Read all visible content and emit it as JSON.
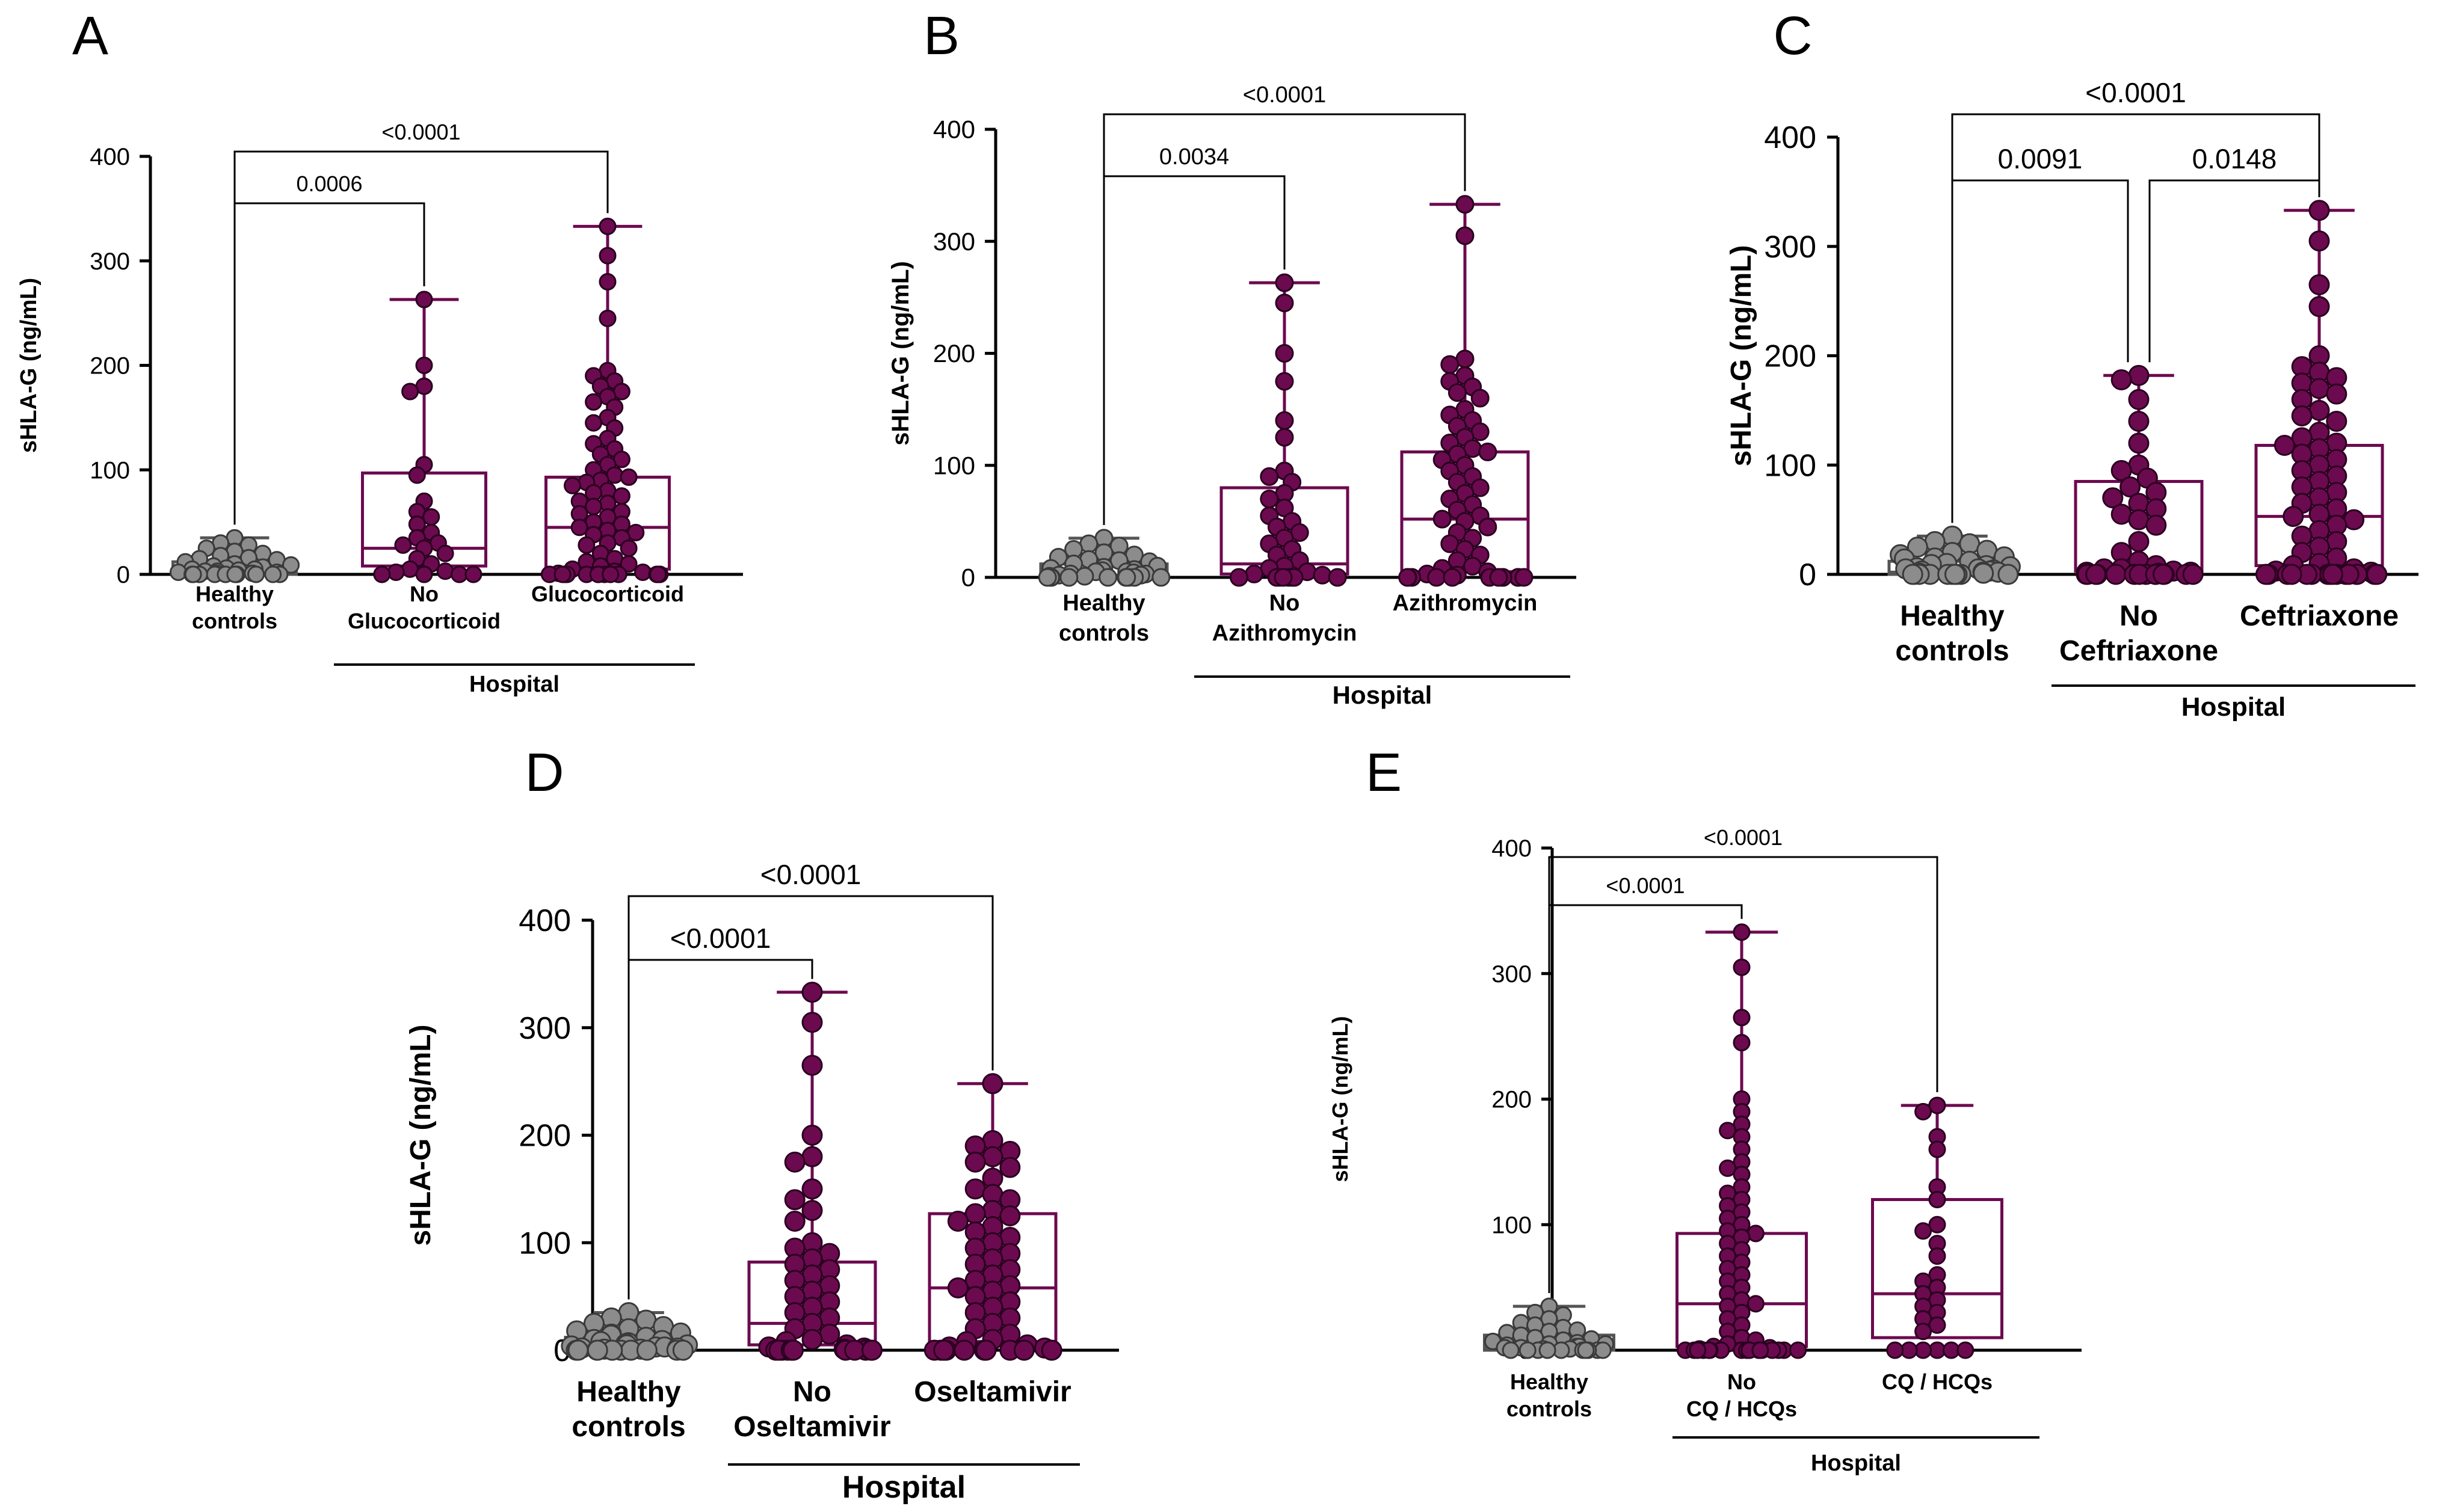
{
  "colors": {
    "control": "#8c8c8c",
    "control_edge": "#555555",
    "patient": "#6c0a4f",
    "patient_edge": "#2a0020",
    "axis": "#000000"
  },
  "chart_data": [
    {
      "panel": "A",
      "type": "box",
      "ylabel": "sHLA-G (ng/mL)",
      "ylim": [
        0,
        400
      ],
      "yticks": [
        0,
        100,
        200,
        300,
        400
      ],
      "groups": [
        {
          "label": [
            "Healthy",
            "controls"
          ],
          "color": "control",
          "min": 0,
          "q1": 0,
          "median": 2,
          "q3": 12,
          "max": 35,
          "points": [
            35,
            30,
            28,
            25,
            22,
            20,
            18,
            16,
            15,
            14,
            12,
            10,
            9,
            8,
            7,
            6,
            5,
            5,
            4,
            3,
            3,
            2,
            2,
            1,
            1,
            0,
            0,
            0,
            0,
            0,
            0,
            0,
            0,
            0,
            0
          ]
        },
        {
          "label": [
            "No",
            "Glucocorticoid"
          ],
          "color": "patient",
          "min": 0,
          "q1": 8,
          "median": 25,
          "q3": 97,
          "max": 263,
          "points": [
            263,
            200,
            180,
            175,
            105,
            95,
            70,
            60,
            55,
            48,
            40,
            35,
            30,
            28,
            25,
            20,
            15,
            10,
            5,
            3,
            2,
            0,
            0,
            0,
            0
          ]
        },
        {
          "label": [
            "Glucocorticoid"
          ],
          "color": "patient",
          "min": 0,
          "q1": 5,
          "median": 45,
          "q3": 93,
          "max": 333,
          "points": [
            333,
            305,
            280,
            245,
            195,
            190,
            185,
            180,
            175,
            170,
            165,
            160,
            150,
            145,
            140,
            130,
            125,
            120,
            115,
            110,
            105,
            100,
            95,
            93,
            90,
            88,
            85,
            80,
            78,
            75,
            70,
            68,
            65,
            60,
            58,
            55,
            50,
            48,
            45,
            42,
            40,
            38,
            35,
            30,
            28,
            25,
            20,
            15,
            12,
            10,
            8,
            5,
            3,
            2,
            1,
            0,
            0,
            0,
            0,
            0,
            0,
            0,
            0,
            0,
            0,
            0,
            0,
            0,
            0,
            0
          ]
        }
      ],
      "comparisons": [
        {
          "from": 0,
          "to": 1,
          "label": "0.0006"
        },
        {
          "from": 0,
          "to": 2,
          "label": "<0.0001"
        }
      ],
      "hospital_label": "Hospital"
    },
    {
      "panel": "B",
      "type": "box",
      "ylabel": "sHLA-G (ng/mL)",
      "ylim": [
        0,
        400
      ],
      "yticks": [
        0,
        100,
        200,
        300,
        400
      ],
      "groups": [
        {
          "label": [
            "Healthy",
            "controls"
          ],
          "color": "control",
          "min": 0,
          "q1": 0,
          "median": 2,
          "q3": 12,
          "max": 35,
          "points": [
            35,
            30,
            28,
            25,
            22,
            20,
            18,
            16,
            15,
            14,
            12,
            10,
            9,
            8,
            7,
            6,
            5,
            5,
            4,
            3,
            3,
            2,
            2,
            1,
            1,
            0,
            0,
            0,
            0,
            0,
            0,
            0,
            0,
            0,
            0
          ]
        },
        {
          "label": [
            "No",
            "Azithromycin"
          ],
          "color": "patient",
          "min": 0,
          "q1": 3,
          "median": 12,
          "q3": 80,
          "max": 263,
          "points": [
            263,
            245,
            200,
            175,
            140,
            125,
            95,
            90,
            85,
            75,
            70,
            62,
            55,
            50,
            45,
            40,
            35,
            30,
            25,
            20,
            15,
            10,
            8,
            5,
            3,
            2,
            0,
            0,
            0,
            0,
            0,
            0,
            0,
            0
          ]
        },
        {
          "label": [
            "Azithromycin"
          ],
          "color": "patient",
          "min": 0,
          "q1": 5,
          "median": 52,
          "q3": 112,
          "max": 333,
          "points": [
            333,
            305,
            195,
            190,
            180,
            175,
            170,
            165,
            160,
            150,
            145,
            140,
            135,
            130,
            125,
            120,
            115,
            112,
            110,
            105,
            100,
            95,
            90,
            85,
            80,
            75,
            70,
            65,
            60,
            55,
            52,
            50,
            45,
            40,
            35,
            30,
            25,
            20,
            15,
            10,
            8,
            5,
            3,
            2,
            0,
            0,
            0,
            0,
            0,
            0,
            0,
            0,
            0,
            0,
            0,
            0
          ]
        }
      ],
      "comparisons": [
        {
          "from": 0,
          "to": 1,
          "label": "0.0034"
        },
        {
          "from": 0,
          "to": 2,
          "label": "<0.0001"
        }
      ],
      "hospital_label": "Hospital"
    },
    {
      "panel": "C",
      "type": "box",
      "ylabel": "sHLA-G (ng/mL)",
      "ylim": [
        0,
        400
      ],
      "yticks": [
        0,
        100,
        200,
        300,
        400
      ],
      "groups": [
        {
          "label": [
            "Healthy",
            "controls"
          ],
          "color": "control",
          "min": 0,
          "q1": 0,
          "median": 2,
          "q3": 12,
          "max": 35,
          "points": [
            35,
            30,
            28,
            25,
            22,
            20,
            18,
            16,
            15,
            14,
            12,
            10,
            9,
            8,
            7,
            6,
            5,
            5,
            4,
            3,
            3,
            2,
            2,
            1,
            1,
            0,
            0,
            0,
            0,
            0,
            0,
            0,
            0,
            0,
            0
          ]
        },
        {
          "label": [
            "No",
            "Ceftriaxone"
          ],
          "color": "patient",
          "min": 0,
          "q1": 3,
          "median": 5,
          "q3": 85,
          "max": 182,
          "points": [
            182,
            178,
            160,
            140,
            120,
            100,
            95,
            88,
            80,
            75,
            70,
            65,
            60,
            55,
            50,
            45,
            30,
            20,
            12,
            8,
            5,
            5,
            3,
            2,
            2,
            1,
            0,
            0,
            0,
            0,
            0,
            0,
            0,
            0,
            0,
            0,
            0,
            0,
            0,
            0
          ]
        },
        {
          "label": [
            "Ceftriaxone"
          ],
          "color": "patient",
          "min": 0,
          "q1": 8,
          "median": 53,
          "q3": 118,
          "max": 333,
          "points": [
            333,
            305,
            265,
            245,
            200,
            190,
            185,
            180,
            175,
            170,
            165,
            160,
            150,
            145,
            140,
            130,
            125,
            120,
            118,
            115,
            110,
            105,
            100,
            95,
            90,
            85,
            80,
            75,
            70,
            65,
            60,
            55,
            53,
            50,
            45,
            40,
            35,
            30,
            25,
            20,
            15,
            10,
            8,
            5,
            3,
            2,
            0,
            0,
            0,
            0,
            0,
            0,
            0,
            0,
            0,
            0,
            0,
            0,
            0,
            0,
            0,
            0
          ]
        }
      ],
      "comparisons": [
        {
          "from": 0,
          "to": 1,
          "label": "0.0091"
        },
        {
          "from": 1,
          "to": 2,
          "label": "0.0148"
        },
        {
          "from": 0,
          "to": 2,
          "label": "<0.0001"
        }
      ],
      "hospital_label": "Hospital"
    },
    {
      "panel": "D",
      "type": "box",
      "ylabel": "sHLA-G (ng/mL)",
      "ylim": [
        0,
        400
      ],
      "yticks": [
        0,
        100,
        200,
        300,
        400
      ],
      "groups": [
        {
          "label": [
            "Healthy",
            "controls"
          ],
          "color": "control",
          "min": 0,
          "q1": 0,
          "median": 2,
          "q3": 12,
          "max": 35,
          "points": [
            35,
            30,
            28,
            25,
            22,
            20,
            18,
            16,
            15,
            14,
            12,
            10,
            9,
            8,
            7,
            6,
            5,
            5,
            4,
            3,
            3,
            2,
            2,
            1,
            1,
            0,
            0,
            0,
            0,
            0,
            0,
            0,
            0,
            0,
            0
          ]
        },
        {
          "label": [
            "No",
            "Oseltamivir"
          ],
          "color": "patient",
          "min": 0,
          "q1": 5,
          "median": 25,
          "q3": 82,
          "max": 333,
          "points": [
            333,
            305,
            265,
            200,
            180,
            175,
            150,
            140,
            130,
            120,
            100,
            95,
            90,
            85,
            80,
            75,
            70,
            65,
            60,
            55,
            50,
            45,
            40,
            35,
            30,
            25,
            20,
            15,
            10,
            8,
            5,
            3,
            2,
            1,
            0,
            0,
            0,
            0,
            0,
            0,
            0,
            0,
            0,
            0,
            0
          ]
        },
        {
          "label": [
            "Oseltamivir"
          ],
          "color": "patient",
          "min": 0,
          "q1": 8,
          "median": 58,
          "q3": 127,
          "max": 248,
          "points": [
            248,
            195,
            190,
            185,
            180,
            175,
            170,
            160,
            150,
            145,
            140,
            130,
            127,
            125,
            120,
            115,
            110,
            105,
            100,
            95,
            90,
            85,
            80,
            75,
            70,
            65,
            60,
            58,
            55,
            50,
            45,
            40,
            35,
            30,
            25,
            20,
            15,
            10,
            8,
            5,
            3,
            2,
            0,
            0,
            0,
            0,
            0,
            0,
            0,
            0,
            0,
            0
          ]
        }
      ],
      "comparisons": [
        {
          "from": 0,
          "to": 1,
          "label": "<0.0001"
        },
        {
          "from": 0,
          "to": 2,
          "label": "<0.0001"
        }
      ],
      "hospital_label": "Hospital"
    },
    {
      "panel": "E",
      "type": "box",
      "ylabel": "sHLA-G (ng/mL)",
      "ylim": [
        0,
        400
      ],
      "yticks": [
        0,
        100,
        200,
        300,
        400
      ],
      "groups": [
        {
          "label": [
            "Healthy",
            "controls"
          ],
          "color": "control",
          "min": 0,
          "q1": 0,
          "median": 2,
          "q3": 12,
          "max": 35,
          "points": [
            35,
            30,
            28,
            25,
            22,
            20,
            18,
            16,
            15,
            14,
            12,
            10,
            9,
            8,
            7,
            6,
            5,
            5,
            4,
            3,
            3,
            2,
            2,
            1,
            1,
            0,
            0,
            0,
            0,
            0,
            0,
            0,
            0,
            0,
            0
          ]
        },
        {
          "label": [
            "No",
            "CQ / HCQs"
          ],
          "color": "patient",
          "min": 0,
          "q1": 3,
          "median": 37,
          "q3": 93,
          "max": 333,
          "points": [
            333,
            305,
            265,
            245,
            200,
            190,
            180,
            175,
            170,
            160,
            150,
            145,
            140,
            130,
            125,
            120,
            115,
            110,
            105,
            100,
            95,
            93,
            90,
            85,
            80,
            75,
            70,
            65,
            60,
            55,
            50,
            45,
            40,
            37,
            35,
            30,
            25,
            20,
            15,
            10,
            8,
            5,
            3,
            2,
            1,
            0,
            0,
            0,
            0,
            0,
            0,
            0,
            0,
            0,
            0,
            0,
            0,
            0,
            0,
            0,
            0,
            0,
            0
          ]
        },
        {
          "label": [
            "CQ / HCQs"
          ],
          "color": "patient",
          "min": 0,
          "q1": 10,
          "median": 45,
          "q3": 120,
          "max": 195,
          "points": [
            195,
            190,
            170,
            160,
            130,
            120,
            100,
            95,
            85,
            75,
            60,
            55,
            50,
            45,
            40,
            35,
            30,
            25,
            20,
            15,
            0,
            0,
            0,
            0,
            0,
            0
          ]
        }
      ],
      "comparisons": [
        {
          "from": 0,
          "to": 1,
          "label": "<0.0001"
        },
        {
          "from": 0,
          "to": 2,
          "label": "<0.0001"
        }
      ],
      "hospital_label": "Hospital"
    }
  ]
}
